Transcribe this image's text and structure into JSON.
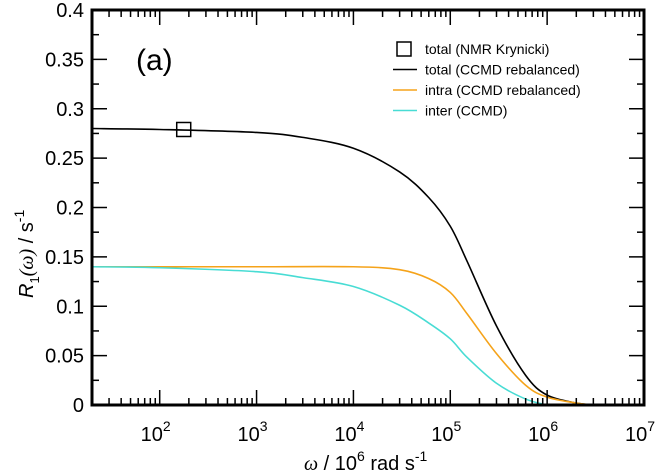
{
  "chart_data": {
    "type": "line",
    "title": "",
    "panel_label": "(a)",
    "xlabel": "ω / 10^6 rad s^-1",
    "ylabel": "R1(ω) / s^-1",
    "xscale": "log",
    "xlim": [
      20,
      10000000
    ],
    "ylim": [
      0,
      0.4
    ],
    "grid": false,
    "legend_position": "upper right",
    "x_ticks": [
      {
        "value": 100,
        "label": "10",
        "exp": "2"
      },
      {
        "value": 1000,
        "label": "10",
        "exp": "3"
      },
      {
        "value": 10000,
        "label": "10",
        "exp": "4"
      },
      {
        "value": 100000,
        "label": "10",
        "exp": "5"
      },
      {
        "value": 1000000,
        "label": "10",
        "exp": "6"
      },
      {
        "value": 10000000,
        "label": "10",
        "exp": "7"
      }
    ],
    "y_ticks": [
      {
        "value": 0,
        "label": "0"
      },
      {
        "value": 0.05,
        "label": "0.05"
      },
      {
        "value": 0.1,
        "label": "0.1"
      },
      {
        "value": 0.15,
        "label": "0.15"
      },
      {
        "value": 0.2,
        "label": "0.2"
      },
      {
        "value": 0.25,
        "label": "0.25"
      },
      {
        "value": 0.3,
        "label": "0.3"
      },
      {
        "value": 0.35,
        "label": "0.35"
      },
      {
        "value": 0.4,
        "label": "0.4"
      }
    ],
    "series": [
      {
        "name": "total (NMR Krynicki)",
        "kind": "marker",
        "marker": "open-square",
        "color": "#000000",
        "x": [
          177
        ],
        "y": [
          0.279
        ]
      },
      {
        "name": "total (CCMD rebalanced)",
        "kind": "line",
        "color": "#000000",
        "x": [
          20,
          100,
          1000,
          3000,
          10000,
          30000,
          60000,
          100000,
          150000,
          300000,
          600000,
          1000000,
          2000000,
          3000000
        ],
        "y": [
          0.28,
          0.279,
          0.276,
          0.271,
          0.26,
          0.236,
          0.21,
          0.181,
          0.145,
          0.08,
          0.03,
          0.01,
          0.002,
          0.0
        ]
      },
      {
        "name": "intra (CCMD rebalanced)",
        "kind": "line",
        "color": "#f5a31a",
        "x": [
          20,
          100,
          1000,
          10000,
          30000,
          60000,
          100000,
          150000,
          300000,
          600000,
          1000000,
          2000000,
          3000000
        ],
        "y": [
          0.14,
          0.14,
          0.14,
          0.14,
          0.137,
          0.128,
          0.114,
          0.092,
          0.052,
          0.02,
          0.008,
          0.002,
          0.0
        ]
      },
      {
        "name": "inter (CCMD)",
        "kind": "line",
        "color": "#48dcd4",
        "x": [
          20,
          100,
          1000,
          3000,
          10000,
          30000,
          60000,
          100000,
          150000,
          300000,
          600000,
          1000000
        ],
        "y": [
          0.14,
          0.139,
          0.135,
          0.129,
          0.12,
          0.101,
          0.083,
          0.067,
          0.048,
          0.022,
          0.006,
          0.0
        ]
      }
    ]
  },
  "legend": {
    "items": [
      {
        "label": "total (NMR Krynicki)",
        "type": "marker"
      },
      {
        "label": "total (CCMD rebalanced)",
        "type": "line",
        "color": "#000000"
      },
      {
        "label": "intra (CCMD rebalanced)",
        "type": "line",
        "color": "#f5a31a"
      },
      {
        "label": "inter (CCMD)",
        "type": "line",
        "color": "#48dcd4"
      }
    ]
  },
  "axes": {
    "x_title_prefix": "ω",
    "x_title_mid": " / 10",
    "x_title_exp": "6",
    "x_title_unit": " rad s",
    "x_title_unit_exp": "-1",
    "y_title_main": "R",
    "y_title_sub": "1",
    "y_title_arg": "(ω)",
    "y_title_unit": " / s",
    "y_title_unit_exp": "-1"
  }
}
